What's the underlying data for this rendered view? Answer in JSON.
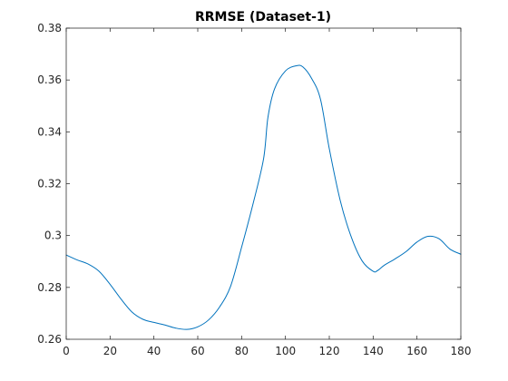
{
  "chart_data": {
    "type": "line",
    "title": "RRMSE (Dataset-1)",
    "xlabel": "",
    "ylabel": "",
    "xlim": [
      0,
      180
    ],
    "ylim": [
      0.26,
      0.38
    ],
    "xticks": [
      0,
      20,
      40,
      60,
      80,
      100,
      120,
      140,
      160,
      180
    ],
    "yticks": [
      0.26,
      0.28,
      0.3,
      0.32,
      0.34,
      0.36,
      0.38
    ],
    "xtick_labels": [
      "0",
      "20",
      "40",
      "60",
      "80",
      "100",
      "120",
      "140",
      "160",
      "180"
    ],
    "ytick_labels": [
      "0.26",
      "0.28",
      "0.3",
      "0.32",
      "0.34",
      "0.36",
      "0.38"
    ],
    "grid": false,
    "legend": false,
    "series": [
      {
        "color": "#0072BD",
        "x": [
          0,
          5,
          10,
          15,
          20,
          25,
          30,
          35,
          40,
          45,
          50,
          55,
          60,
          65,
          70,
          75,
          80,
          85,
          90,
          92,
          95,
          100,
          105,
          108,
          112,
          116,
          120,
          125,
          130,
          135,
          140,
          142,
          145,
          150,
          155,
          160,
          165,
          170,
          175,
          180
        ],
        "y": [
          0.2925,
          0.2906,
          0.289,
          0.2862,
          0.2812,
          0.2755,
          0.2705,
          0.2677,
          0.2665,
          0.2655,
          0.2643,
          0.2638,
          0.2648,
          0.2675,
          0.2725,
          0.2805,
          0.2955,
          0.3115,
          0.3295,
          0.3455,
          0.3565,
          0.3635,
          0.3655,
          0.365,
          0.3605,
          0.3525,
          0.3335,
          0.3135,
          0.2995,
          0.2902,
          0.2862,
          0.2865,
          0.2885,
          0.291,
          0.2938,
          0.2975,
          0.2997,
          0.2988,
          0.2948,
          0.2928
        ]
      }
    ]
  }
}
